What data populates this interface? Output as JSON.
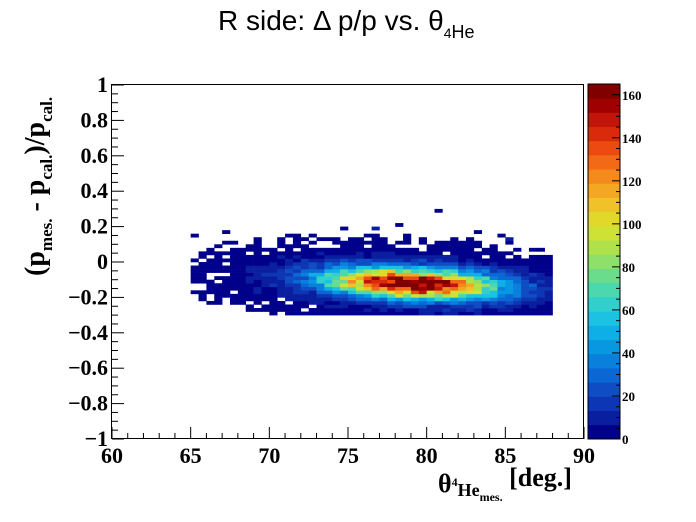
{
  "chart_data": {
    "type": "heatmap",
    "title": {
      "text": "R side: Δ p/p vs. θ",
      "sub": "4",
      "sub2": "He"
    },
    "xlabel": {
      "theta": "θ",
      "sup": "4",
      "he": "He",
      "mes": "mes.",
      "unit": " [deg.]"
    },
    "ylabel": {
      "open": "(p",
      "mes": "mes.",
      "minus": " - p",
      "cal": "cal.",
      "close": ")/p",
      "cal2": "cal."
    },
    "xlim": [
      60,
      90
    ],
    "ylim": [
      -1,
      1
    ],
    "x_ticks": [
      "60",
      "65",
      "70",
      "75",
      "80",
      "85",
      "90"
    ],
    "y_ticks": [
      "−1",
      "−0.8",
      "−0.6",
      "−0.4",
      "−0.2",
      "0",
      "0.2",
      "0.4",
      "0.6",
      "0.8",
      "1"
    ],
    "zlim": [
      0,
      165
    ],
    "z_ticks": [
      "0",
      "20",
      "40",
      "60",
      "80",
      "100",
      "120",
      "140",
      "160"
    ],
    "palette": [
      "#00008b",
      "#0a1fa0",
      "#0d36b4",
      "#0f4dc4",
      "#0b67d4",
      "#0a80dd",
      "#0898e2",
      "#0eaee6",
      "#1cc2e2",
      "#31d0cc",
      "#4cd8ae",
      "#6bdc8c",
      "#8ee06a",
      "#afe24a",
      "#cde234",
      "#e2d82a",
      "#eec228",
      "#f3a722",
      "#f58a1c",
      "#f36a16",
      "#ec4a10",
      "#d92b0b",
      "#c01508",
      "#a00000",
      "#800000"
    ],
    "distribution": {
      "x_center": 79,
      "y_center": -0.12,
      "x_sigma": 3.6,
      "y_sigma": 0.055,
      "peak": 165,
      "x_range": [
        65,
        88
      ],
      "y_range": [
        -0.3,
        0.3
      ],
      "bin_x": 0.5,
      "bin_y": 0.02
    }
  }
}
